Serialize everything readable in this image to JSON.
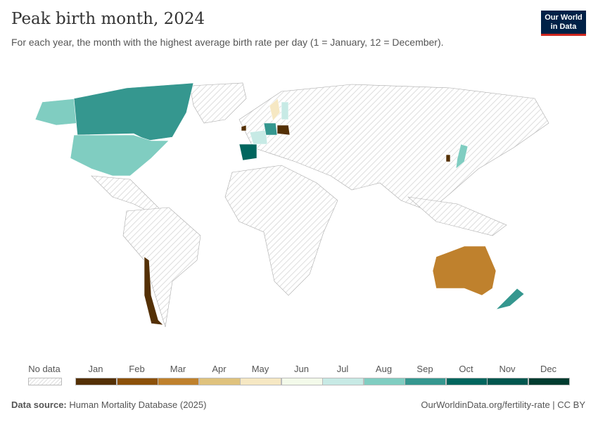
{
  "title": "Peak birth month, 2024",
  "subtitle": "For each year, the month with the highest average birth rate per day (1 = January, 12 = December).",
  "logo": "Our World in Data",
  "legend": {
    "no_data": "No data",
    "months": [
      {
        "label": "Jan",
        "color": "#543005"
      },
      {
        "label": "Feb",
        "color": "#8c510a"
      },
      {
        "label": "Mar",
        "color": "#bf812d"
      },
      {
        "label": "Apr",
        "color": "#dfc27d"
      },
      {
        "label": "May",
        "color": "#f6e8c3"
      },
      {
        "label": "Jun",
        "color": "#f3faea"
      },
      {
        "label": "Jul",
        "color": "#c7eae5"
      },
      {
        "label": "Aug",
        "color": "#80cdc1"
      },
      {
        "label": "Sep",
        "color": "#35978f"
      },
      {
        "label": "Oct",
        "color": "#01665e"
      },
      {
        "label": "Nov",
        "color": "#00574f"
      },
      {
        "label": "Dec",
        "color": "#003c30"
      }
    ]
  },
  "map_data": [
    {
      "country": "Canada",
      "month": 9
    },
    {
      "country": "United States",
      "month": 8
    },
    {
      "country": "Chile",
      "month": 1
    },
    {
      "country": "Australia",
      "month": 3
    },
    {
      "country": "New Zealand",
      "month": 9
    },
    {
      "country": "Spain",
      "month": 10
    },
    {
      "country": "Poland",
      "month": 1
    },
    {
      "country": "Ireland",
      "month": 1
    },
    {
      "country": "South Korea",
      "month": 1
    },
    {
      "country": "Japan",
      "month": 8
    },
    {
      "country": "Sweden",
      "month": 5
    },
    {
      "country": "Finland",
      "month": 7
    },
    {
      "country": "France",
      "month": 7
    },
    {
      "country": "Germany",
      "month": 9
    }
  ],
  "footer": {
    "source_label": "Data source:",
    "source": "Human Mortality Database (2025)",
    "url": "OurWorldinData.org/fertility-rate | CC BY"
  }
}
